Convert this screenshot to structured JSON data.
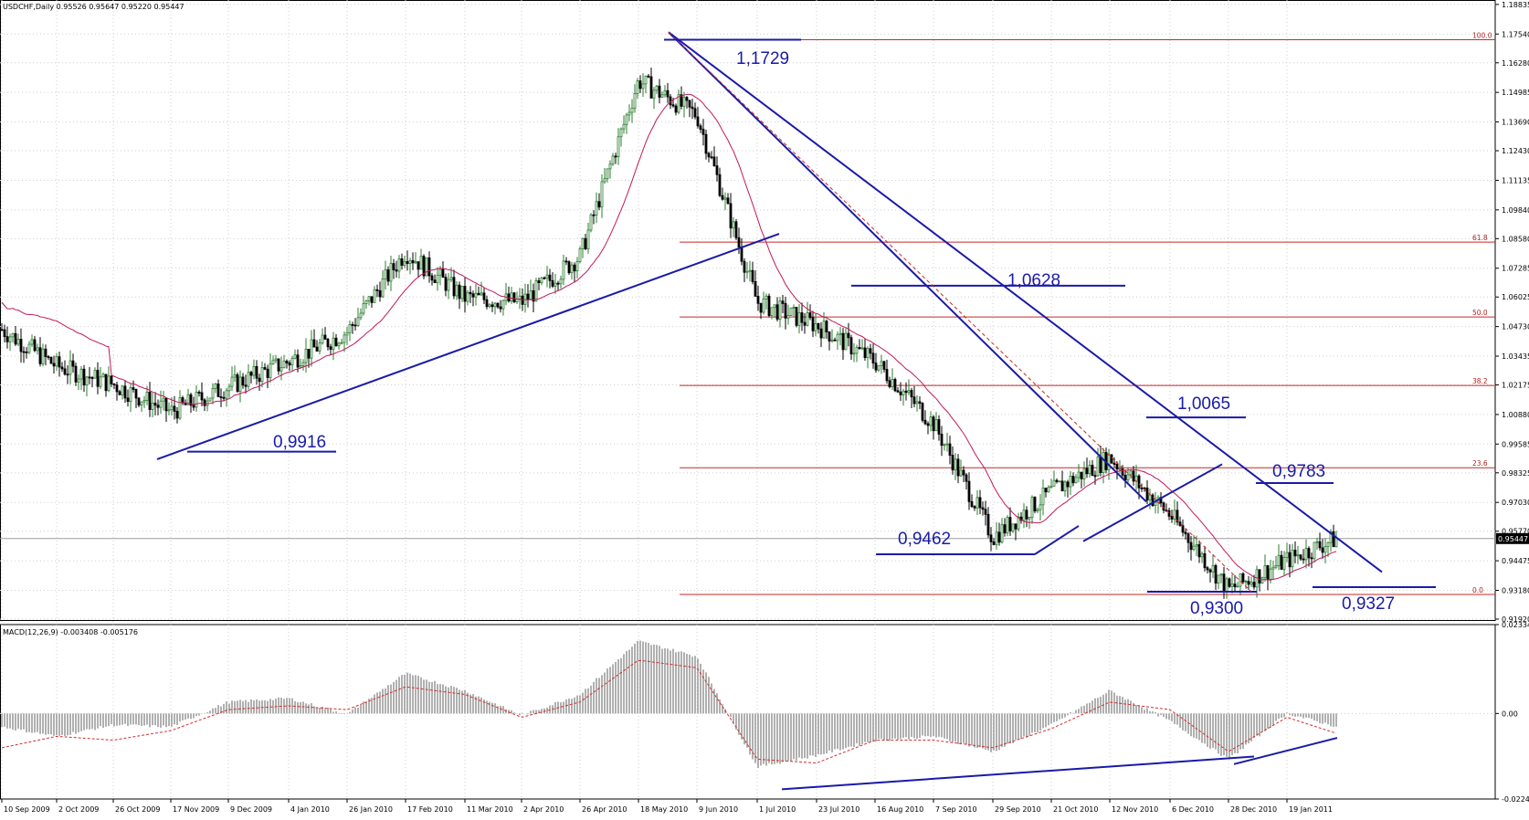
{
  "header": {
    "title": "USDCHF,Daily  0.95526 0.95647 0.95220 0.95447",
    "macd_title": "MACD(12,26,9) -0.003408 -0.005176"
  },
  "colors": {
    "bull_candle": "#2e7d32",
    "bear_candle": "#000000",
    "ma_line": "#c2185b",
    "trendline": "#1a1aa8",
    "fib_line": "#c62828",
    "macd_hist": "#b0b0b0",
    "macd_signal": "#d32f2f",
    "grid": "#cfcfcf",
    "price_tag_bg": "#000000"
  },
  "chart_data": [
    {
      "type": "line",
      "title": "USDCHF,Daily",
      "ylim": [
        0.9192,
        1.1883
      ],
      "price_ticks": [
        "1.18835",
        "1.17540",
        "1.16280",
        "1.14985",
        "1.13690",
        "1.12430",
        "1.11135",
        "1.09840",
        "1.08580",
        "1.07285",
        "1.06025",
        "1.04730",
        "1.03435",
        "1.02175",
        "1.00880",
        "0.99585",
        "0.98325",
        "0.97030",
        "0.95770",
        "0.94475",
        "0.93180",
        "0.91920"
      ],
      "current_price": "0.95447",
      "x_tick_labels": [
        "10 Sep 2009",
        "2 Oct 2009",
        "26 Oct 2009",
        "17 Nov 2009",
        "9 Dec 2009",
        "4 Jan 2010",
        "26 Jan 2010",
        "17 Feb 2010",
        "11 Mar 2010",
        "2 Apr 2010",
        "26 Apr 2010",
        "18 May 2010",
        "9 Jun 2010",
        "1 Jul 2010",
        "23 Jul 2010",
        "16 Aug 2010",
        "7 Sep 2010",
        "29 Sep 2010",
        "21 Oct 2010",
        "12 Nov 2010",
        "6 Dec 2010",
        "28 Dec 2010",
        "19 Jan 2011"
      ],
      "close_series": [
        [
          "10 Sep 2009",
          1.046
        ],
        [
          "2 Oct 2009",
          1.03
        ],
        [
          "26 Oct 2009",
          1.022
        ],
        [
          "17 Nov 2009",
          1.01
        ],
        [
          "9 Dec 2009",
          1.021
        ],
        [
          "4 Jan 2010",
          1.032
        ],
        [
          "26 Jan 2010",
          1.045
        ],
        [
          "17 Feb 2010",
          1.08
        ],
        [
          "11 Mar 2010",
          1.06
        ],
        [
          "2 Apr 2010",
          1.058
        ],
        [
          "26 Apr 2010",
          1.078
        ],
        [
          "18 May 2010",
          1.155
        ],
        [
          "9 Jun 2010",
          1.14
        ],
        [
          "1 Jul 2010",
          1.058
        ],
        [
          "23 Jul 2010",
          1.048
        ],
        [
          "16 Aug 2010",
          1.032
        ],
        [
          "7 Sep 2010",
          1.005
        ],
        [
          "29 Sep 2010",
          0.955
        ],
        [
          "21 Oct 2010",
          0.975
        ],
        [
          "12 Nov 2010",
          0.99
        ],
        [
          "6 Dec 2010",
          0.965
        ],
        [
          "28 Dec 2010",
          0.932
        ],
        [
          "19 Jan 2011",
          0.945
        ],
        [
          "end",
          0.9545
        ]
      ],
      "fibonacci": [
        {
          "level": "100.0",
          "price": 1.1729
        },
        {
          "level": "61.8",
          "price": 1.0843
        },
        {
          "level": "50.0",
          "price": 1.0515
        },
        {
          "level": "38.2",
          "price": 1.0215
        },
        {
          "level": "23.6",
          "price": 0.9855
        },
        {
          "level": "0.0",
          "price": 0.93
        }
      ],
      "annotations": [
        "1,1729",
        "1,0628",
        "1,0065",
        "0,9783",
        "0,9916",
        "0,9462",
        "0,9300",
        "0,9327"
      ]
    },
    {
      "type": "area",
      "title": "MACD(12,26,9)",
      "ylim": [
        -0.02245,
        0.02334
      ],
      "ticks": [
        "0.02334",
        "0.00",
        "-0.02245"
      ],
      "histogram": [
        [
          "10 Sep 2009",
          -0.0035
        ],
        [
          "2 Oct 2009",
          -0.006
        ],
        [
          "26 Oct 2009",
          -0.003
        ],
        [
          "17 Nov 2009",
          -0.0035
        ],
        [
          "9 Dec 2009",
          0.003
        ],
        [
          "4 Jan 2010",
          0.004
        ],
        [
          "26 Jan 2010",
          -0.0002
        ],
        [
          "17 Feb 2010",
          0.0105
        ],
        [
          "11 Mar 2010",
          0.006
        ],
        [
          "2 Apr 2010",
          -0.0005
        ],
        [
          "26 Apr 2010",
          0.005
        ],
        [
          "18 May 2010",
          0.019
        ],
        [
          "9 Jun 2010",
          0.015
        ],
        [
          "1 Jul 2010",
          -0.014
        ],
        [
          "23 Jul 2010",
          -0.011
        ],
        [
          "16 Aug 2010",
          -0.007
        ],
        [
          "7 Sep 2010",
          -0.006
        ],
        [
          "29 Sep 2010",
          -0.01
        ],
        [
          "21 Oct 2010",
          -0.003
        ],
        [
          "12 Nov 2010",
          0.006
        ],
        [
          "6 Dec 2010",
          -0.002
        ],
        [
          "28 Dec 2010",
          -0.012
        ],
        [
          "19 Jan 2011",
          0.0
        ],
        [
          "end",
          -0.0034
        ]
      ],
      "signal": [
        [
          "10 Sep 2009",
          -0.009
        ],
        [
          "2 Oct 2009",
          -0.006
        ],
        [
          "26 Oct 2009",
          -0.007
        ],
        [
          "17 Nov 2009",
          -0.0045
        ],
        [
          "9 Dec 2009",
          0.001
        ],
        [
          "4 Jan 2010",
          0.002
        ],
        [
          "26 Jan 2010",
          0.001
        ],
        [
          "17 Feb 2010",
          0.007
        ],
        [
          "11 Mar 2010",
          0.005
        ],
        [
          "2 Apr 2010",
          -0.001
        ],
        [
          "26 Apr 2010",
          0.003
        ],
        [
          "18 May 2010",
          0.014
        ],
        [
          "9 Jun 2010",
          0.012
        ],
        [
          "1 Jul 2010",
          -0.012
        ],
        [
          "23 Jul 2010",
          -0.013
        ],
        [
          "16 Aug 2010",
          -0.007
        ],
        [
          "7 Sep 2010",
          -0.007
        ],
        [
          "29 Sep 2010",
          -0.009
        ],
        [
          "21 Oct 2010",
          -0.004
        ],
        [
          "12 Nov 2010",
          0.003
        ],
        [
          "6 Dec 2010",
          0.001
        ],
        [
          "28 Dec 2010",
          -0.01
        ],
        [
          "19 Jan 2011",
          -0.001
        ],
        [
          "end",
          -0.0052
        ]
      ]
    }
  ]
}
